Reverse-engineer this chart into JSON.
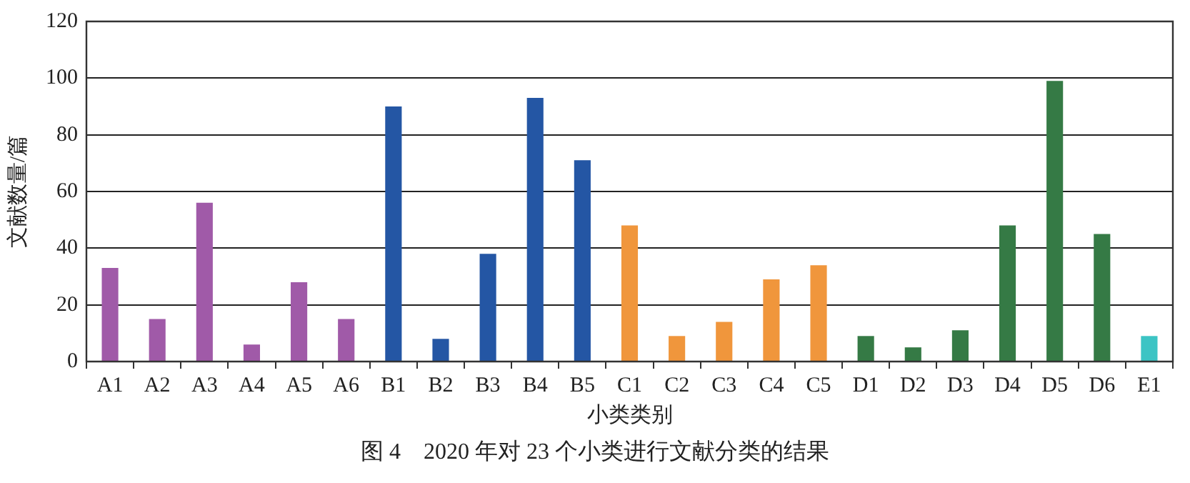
{
  "chart_data": {
    "type": "bar",
    "title": "图 4　2020 年对 23 个小类进行文献分类的结果",
    "xlabel": "小类类别",
    "ylabel": "文献数量/篇",
    "categories": [
      "A1",
      "A2",
      "A3",
      "A4",
      "A5",
      "A6",
      "B1",
      "B2",
      "B3",
      "B4",
      "B5",
      "C1",
      "C2",
      "C3",
      "C4",
      "C5",
      "D1",
      "D2",
      "D3",
      "D4",
      "D5",
      "D6",
      "E1"
    ],
    "values": [
      33,
      15,
      56,
      6,
      28,
      15,
      90,
      8,
      38,
      93,
      71,
      48,
      9,
      14,
      29,
      34,
      9,
      5,
      11,
      48,
      99,
      45,
      9
    ],
    "colors": [
      "#a05aa8",
      "#a05aa8",
      "#a05aa8",
      "#a05aa8",
      "#a05aa8",
      "#a05aa8",
      "#2456a4",
      "#2456a4",
      "#2456a4",
      "#2456a4",
      "#2456a4",
      "#f0963c",
      "#f0963c",
      "#f0963c",
      "#f0963c",
      "#f0963c",
      "#357a45",
      "#357a45",
      "#357a45",
      "#357a45",
      "#357a45",
      "#357a45",
      "#3cc4c4"
    ],
    "ylim": [
      0,
      120
    ],
    "yticks": [
      0,
      20,
      40,
      60,
      80,
      100,
      120
    ],
    "grid": "y",
    "legend": false
  }
}
